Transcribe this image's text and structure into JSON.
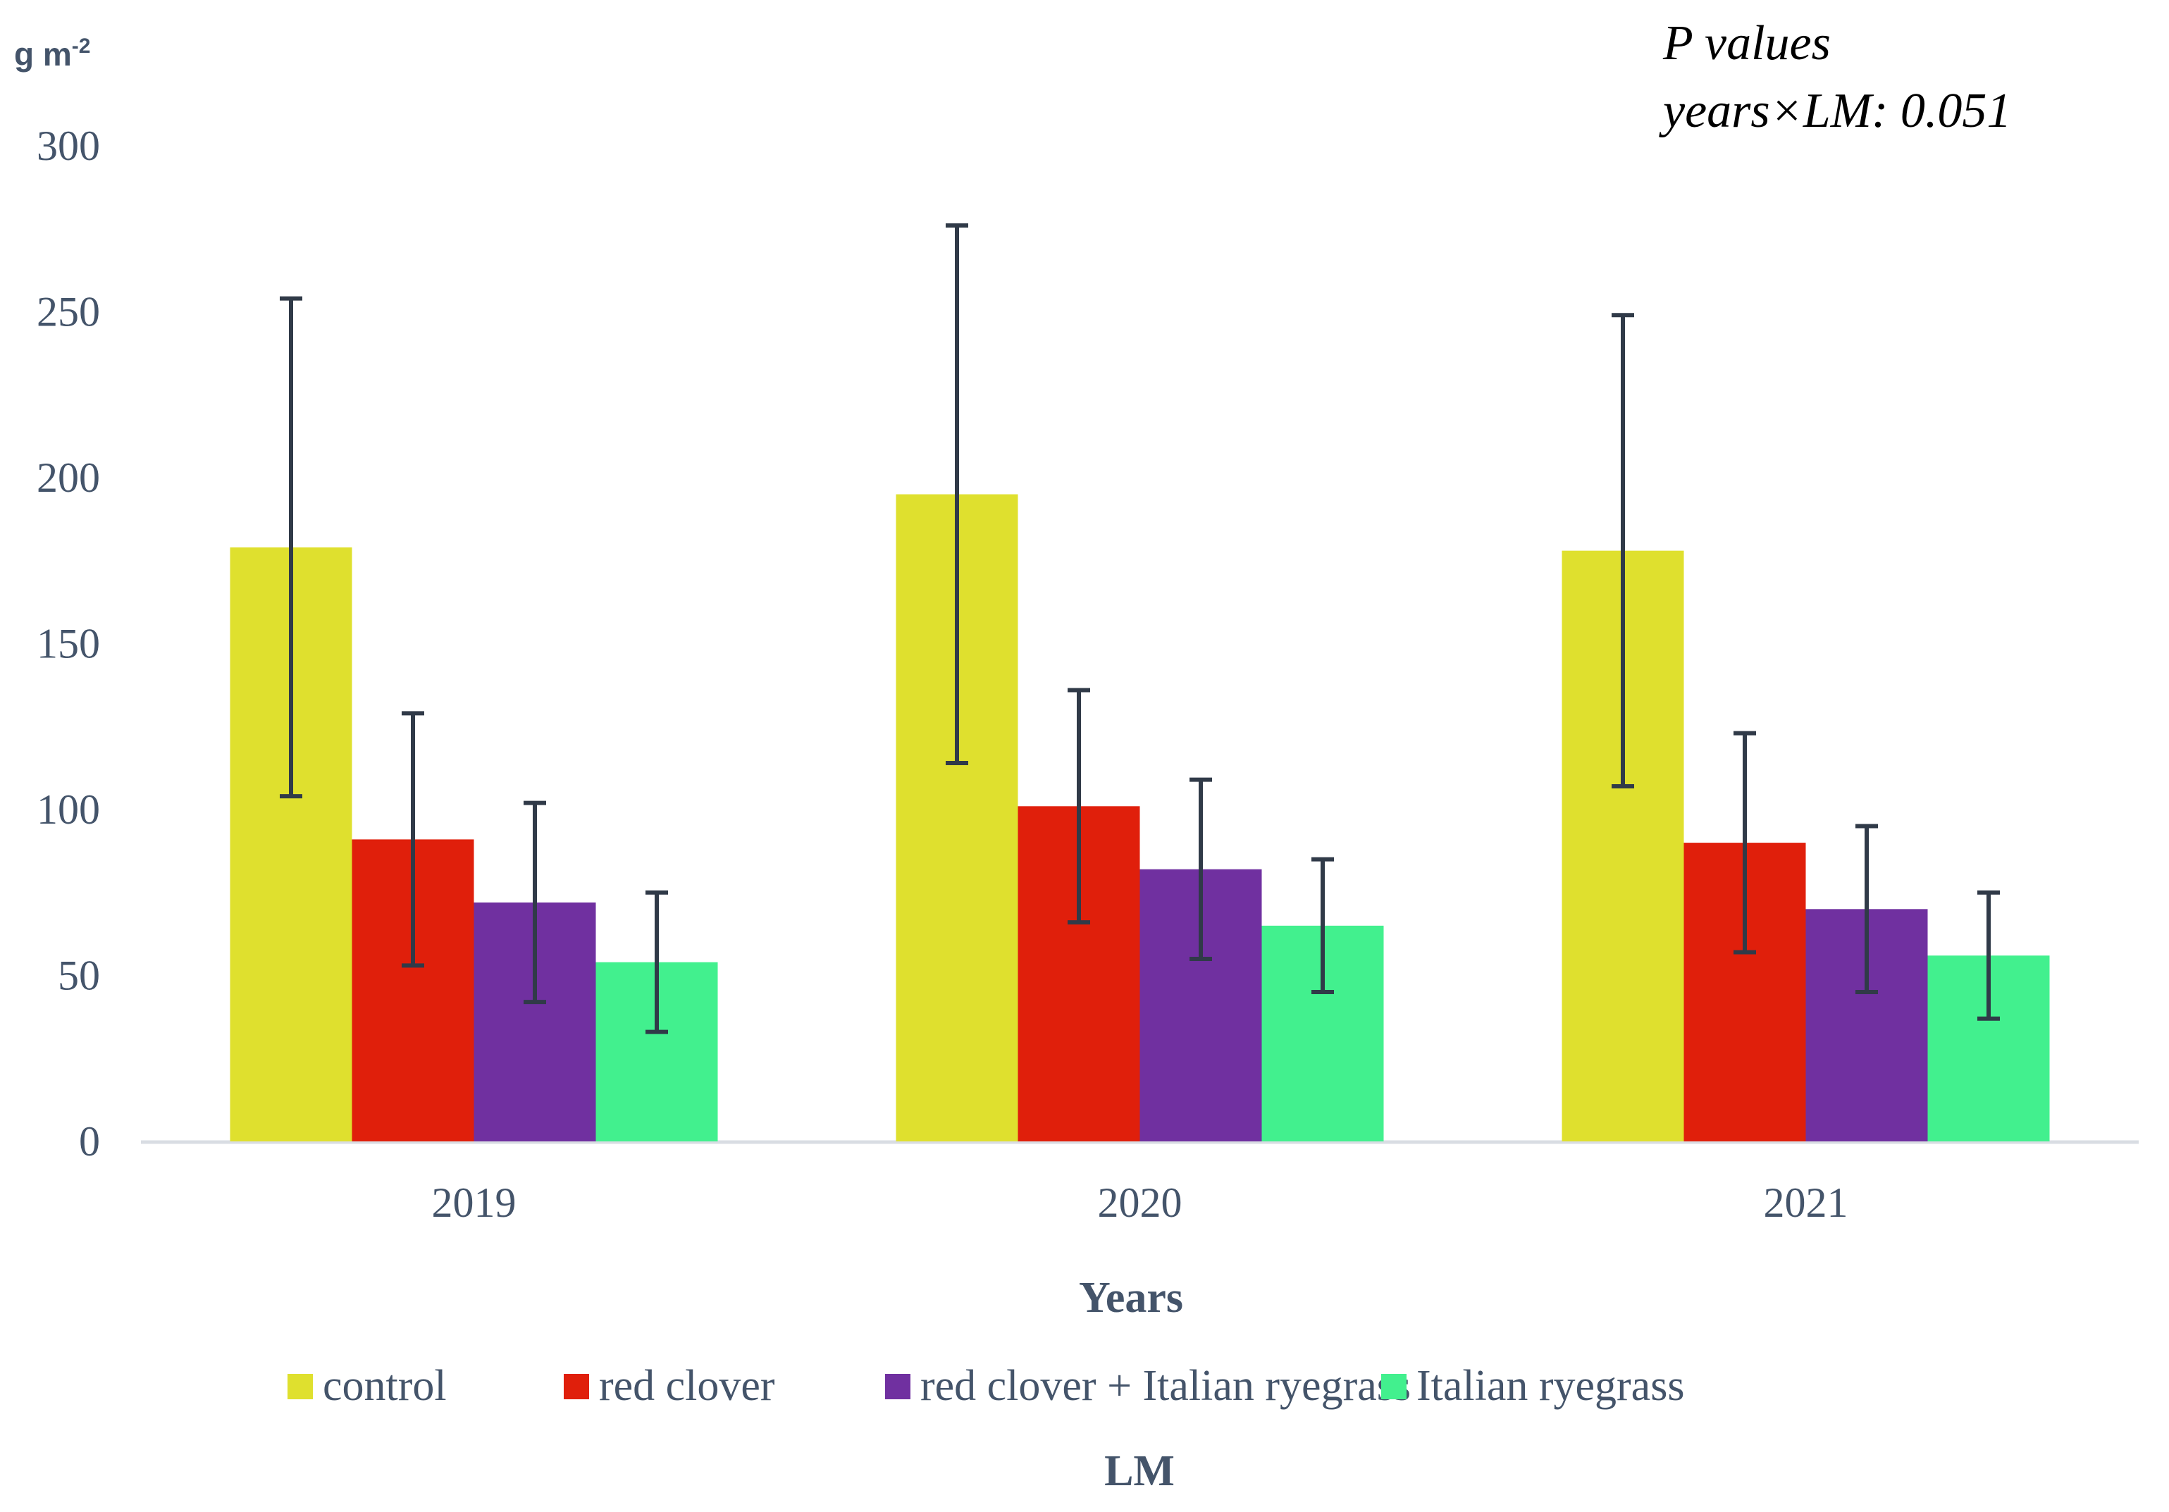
{
  "chart_data": {
    "type": "bar",
    "title": "",
    "ylabel": "g m",
    "ylabel_sup": "-2",
    "xlabel": "Years",
    "legend_title": "LM",
    "legend_position": "bottom",
    "ylim": [
      0,
      300
    ],
    "yticks": [
      0,
      50,
      100,
      150,
      200,
      250,
      300
    ],
    "grid": false,
    "categories": [
      "2019",
      "2020",
      "2021"
    ],
    "series": [
      {
        "name": "control",
        "color": "#dfe02e",
        "values": [
          179,
          195,
          178
        ],
        "errors": [
          75,
          81,
          71
        ]
      },
      {
        "name": "red clover",
        "color": "#e01f0b",
        "values": [
          91,
          101,
          90
        ],
        "errors": [
          38,
          35,
          33
        ]
      },
      {
        "name": "red clover + Italian ryegrass",
        "color": "#7030a0",
        "values": [
          72,
          82,
          70
        ],
        "errors": [
          30,
          27,
          25
        ]
      },
      {
        "name": "Italian ryegrass",
        "color": "#42f08e",
        "values": [
          54,
          65,
          56
        ],
        "errors": [
          21,
          20,
          19
        ]
      }
    ],
    "error_bar_color": "#303a48",
    "axis_color": "#d9dde3",
    "annotations": [
      "P values",
      "years×LM: 0.051"
    ]
  }
}
